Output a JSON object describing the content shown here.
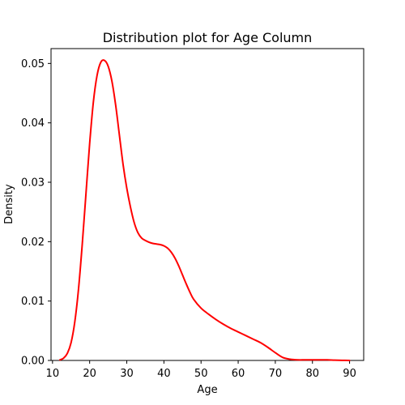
{
  "chart_data": {
    "type": "line",
    "title": "Distribution plot for Age Column",
    "xlabel": "Age",
    "ylabel": "Density",
    "xlim": [
      9.6,
      93.8
    ],
    "ylim": [
      0,
      0.0525
    ],
    "xticks": [
      10,
      20,
      30,
      40,
      50,
      60,
      70,
      80,
      90
    ],
    "yticks": [
      0.0,
      0.01,
      0.02,
      0.03,
      0.04,
      0.05
    ],
    "ytick_labels": [
      "0.00",
      "0.01",
      "0.02",
      "0.03",
      "0.04",
      "0.05"
    ],
    "grid": false,
    "legend": "none",
    "series": [
      {
        "color": "#ff0000",
        "x": [
          12,
          13,
          14,
          15,
          16,
          17,
          18,
          19,
          20,
          21,
          22,
          23,
          24,
          25,
          26,
          27,
          28,
          29,
          30,
          31,
          32,
          33,
          34,
          35,
          36,
          37,
          38,
          39,
          40,
          41,
          42,
          43,
          44,
          45,
          46,
          47,
          48,
          50,
          52,
          54,
          56,
          58,
          60,
          62,
          64,
          66,
          68,
          70,
          72,
          74,
          76,
          78,
          80,
          82,
          84,
          86,
          88,
          90
        ],
        "y": [
          0.0001,
          0.0004,
          0.0012,
          0.003,
          0.0065,
          0.012,
          0.0195,
          0.028,
          0.0365,
          0.0435,
          0.048,
          0.0502,
          0.0505,
          0.0495,
          0.047,
          0.043,
          0.038,
          0.033,
          0.029,
          0.0258,
          0.0232,
          0.0215,
          0.0206,
          0.0202,
          0.0199,
          0.0197,
          0.0196,
          0.0195,
          0.0193,
          0.0189,
          0.0182,
          0.0172,
          0.0159,
          0.0144,
          0.0129,
          0.0115,
          0.0103,
          0.0088,
          0.0078,
          0.0069,
          0.0061,
          0.0054,
          0.0048,
          0.0042,
          0.0036,
          0.003,
          0.0022,
          0.0013,
          0.0005,
          0.0002,
          0.0001,
          0.0001,
          0.0001,
          0.0001,
          0.0001,
          5e-05,
          2e-05,
          0.0
        ]
      }
    ]
  }
}
